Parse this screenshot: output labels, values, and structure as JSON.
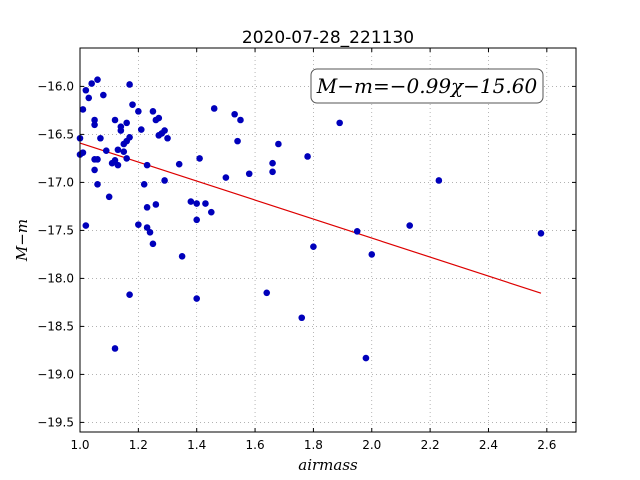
{
  "chart_data": {
    "type": "scatter",
    "title": "2020-07-28_221130",
    "xlabel": "airmass",
    "ylabel": "M−m",
    "annotation": "M−m=−0.99χ−15.60",
    "xlim": [
      1.0,
      2.7
    ],
    "ylim": [
      -19.6,
      -15.6
    ],
    "y_inverted": true,
    "grid": true,
    "xticks": [
      "1.0",
      "1.2",
      "1.4",
      "1.6",
      "1.8",
      "2.0",
      "2.2",
      "2.4",
      "2.6"
    ],
    "yticks": [
      "−16.0",
      "−16.5",
      "−17.0",
      "−17.5",
      "−18.0",
      "−18.5",
      "−19.0",
      "−19.5"
    ],
    "xtick_values": [
      1.0,
      1.2,
      1.4,
      1.6,
      1.8,
      2.0,
      2.2,
      2.4,
      2.6
    ],
    "ytick_values": [
      -16.0,
      -16.5,
      -17.0,
      -17.5,
      -18.0,
      -18.5,
      -19.0,
      -19.5
    ],
    "colors": {
      "points": "#0000bb",
      "fit": "#dd0000"
    },
    "fit": {
      "slope": -0.99,
      "intercept": -15.6,
      "x_range": [
        1.0,
        2.58
      ]
    },
    "points": [
      {
        "x": 1.0,
        "y": -16.54
      },
      {
        "x": 1.0,
        "y": -16.71
      },
      {
        "x": 1.01,
        "y": -16.69
      },
      {
        "x": 1.01,
        "y": -16.24
      },
      {
        "x": 1.02,
        "y": -16.04
      },
      {
        "x": 1.02,
        "y": -17.45
      },
      {
        "x": 1.03,
        "y": -16.12
      },
      {
        "x": 1.04,
        "y": -15.97
      },
      {
        "x": 1.05,
        "y": -16.87
      },
      {
        "x": 1.05,
        "y": -16.76
      },
      {
        "x": 1.05,
        "y": -16.4
      },
      {
        "x": 1.05,
        "y": -16.35
      },
      {
        "x": 1.06,
        "y": -15.93
      },
      {
        "x": 1.06,
        "y": -16.76
      },
      {
        "x": 1.06,
        "y": -17.02
      },
      {
        "x": 1.07,
        "y": -16.54
      },
      {
        "x": 1.08,
        "y": -16.09
      },
      {
        "x": 1.09,
        "y": -16.67
      },
      {
        "x": 1.1,
        "y": -17.15
      },
      {
        "x": 1.11,
        "y": -16.8
      },
      {
        "x": 1.12,
        "y": -16.35
      },
      {
        "x": 1.12,
        "y": -16.77
      },
      {
        "x": 1.12,
        "y": -18.73
      },
      {
        "x": 1.13,
        "y": -16.66
      },
      {
        "x": 1.13,
        "y": -16.82
      },
      {
        "x": 1.14,
        "y": -16.46
      },
      {
        "x": 1.14,
        "y": -16.42
      },
      {
        "x": 1.15,
        "y": -16.68
      },
      {
        "x": 1.15,
        "y": -16.6
      },
      {
        "x": 1.16,
        "y": -16.57
      },
      {
        "x": 1.16,
        "y": -16.38
      },
      {
        "x": 1.16,
        "y": -16.75
      },
      {
        "x": 1.17,
        "y": -15.98
      },
      {
        "x": 1.17,
        "y": -16.53
      },
      {
        "x": 1.17,
        "y": -18.17
      },
      {
        "x": 1.18,
        "y": -16.19
      },
      {
        "x": 1.2,
        "y": -16.26
      },
      {
        "x": 1.2,
        "y": -17.44
      },
      {
        "x": 1.21,
        "y": -16.45
      },
      {
        "x": 1.22,
        "y": -17.02
      },
      {
        "x": 1.23,
        "y": -16.82
      },
      {
        "x": 1.23,
        "y": -17.26
      },
      {
        "x": 1.23,
        "y": -17.47
      },
      {
        "x": 1.24,
        "y": -17.52
      },
      {
        "x": 1.25,
        "y": -17.64
      },
      {
        "x": 1.25,
        "y": -16.26
      },
      {
        "x": 1.26,
        "y": -16.35
      },
      {
        "x": 1.26,
        "y": -17.23
      },
      {
        "x": 1.27,
        "y": -16.51
      },
      {
        "x": 1.27,
        "y": -16.33
      },
      {
        "x": 1.28,
        "y": -16.49
      },
      {
        "x": 1.29,
        "y": -16.46
      },
      {
        "x": 1.29,
        "y": -16.98
      },
      {
        "x": 1.3,
        "y": -16.54
      },
      {
        "x": 1.34,
        "y": -16.81
      },
      {
        "x": 1.35,
        "y": -17.77
      },
      {
        "x": 1.38,
        "y": -17.2
      },
      {
        "x": 1.4,
        "y": -17.22
      },
      {
        "x": 1.4,
        "y": -17.39
      },
      {
        "x": 1.4,
        "y": -18.21
      },
      {
        "x": 1.41,
        "y": -16.75
      },
      {
        "x": 1.43,
        "y": -17.22
      },
      {
        "x": 1.45,
        "y": -17.31
      },
      {
        "x": 1.46,
        "y": -16.23
      },
      {
        "x": 1.5,
        "y": -16.95
      },
      {
        "x": 1.53,
        "y": -16.29
      },
      {
        "x": 1.54,
        "y": -16.57
      },
      {
        "x": 1.55,
        "y": -16.35
      },
      {
        "x": 1.58,
        "y": -16.91
      },
      {
        "x": 1.64,
        "y": -18.15
      },
      {
        "x": 1.66,
        "y": -16.89
      },
      {
        "x": 1.66,
        "y": -16.8
      },
      {
        "x": 1.68,
        "y": -16.6
      },
      {
        "x": 1.76,
        "y": -18.41
      },
      {
        "x": 1.78,
        "y": -16.73
      },
      {
        "x": 1.8,
        "y": -17.67
      },
      {
        "x": 1.89,
        "y": -16.38
      },
      {
        "x": 1.95,
        "y": -17.51
      },
      {
        "x": 1.98,
        "y": -18.83
      },
      {
        "x": 2.0,
        "y": -17.75
      },
      {
        "x": 2.13,
        "y": -17.45
      },
      {
        "x": 2.23,
        "y": -16.98
      },
      {
        "x": 2.58,
        "y": -17.53
      }
    ]
  }
}
